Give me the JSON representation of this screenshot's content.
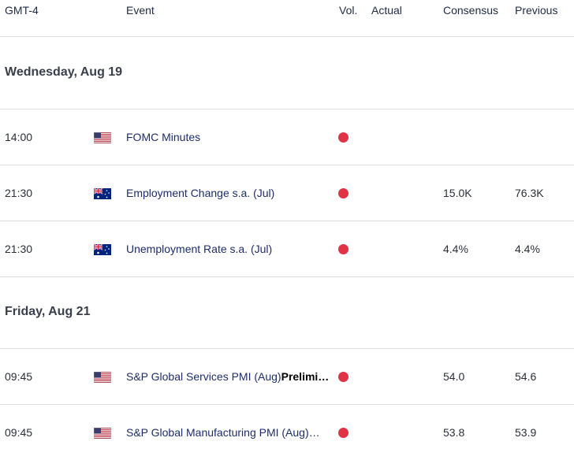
{
  "header": {
    "timezone": "GMT-4",
    "event": "Event",
    "vol": "Vol.",
    "actual": "Actual",
    "consensus": "Consensus",
    "previous": "Previous"
  },
  "days": [
    {
      "label": "Wednesday, Aug 19"
    },
    {
      "label": "Friday, Aug 21"
    }
  ],
  "events": [
    {
      "time": "14:00",
      "country": "us-flag-icon",
      "name": "FOMC Minutes",
      "name_extra": "",
      "volatility": "high",
      "actual": "",
      "consensus": "",
      "previous": ""
    },
    {
      "time": "21:30",
      "country": "au-flag-icon",
      "name": "Employment Change s.a. (Jul)",
      "name_extra": "",
      "volatility": "high",
      "actual": "",
      "consensus": "15.0K",
      "previous": "76.3K"
    },
    {
      "time": "21:30",
      "country": "au-flag-icon",
      "name": "Unemployment Rate s.a. (Jul)",
      "name_extra": "",
      "volatility": "high",
      "actual": "",
      "consensus": "4.4%",
      "previous": "4.4%"
    },
    {
      "time": "09:45",
      "country": "us-flag-icon",
      "name": "S&P Global Services PMI (Aug)",
      "name_extra": "Prelimi…",
      "volatility": "high",
      "actual": "",
      "consensus": "54.0",
      "previous": "54.6"
    },
    {
      "time": "09:45",
      "country": "us-flag-icon",
      "name": "S&P Global Manufacturing PMI (Aug)…",
      "name_extra": "",
      "volatility": "high",
      "actual": "",
      "consensus": "53.8",
      "previous": "53.9"
    }
  ],
  "colors": {
    "volatility_high": "#e03345",
    "event_link": "#1e2d6b",
    "divider": "#d9dce2"
  }
}
